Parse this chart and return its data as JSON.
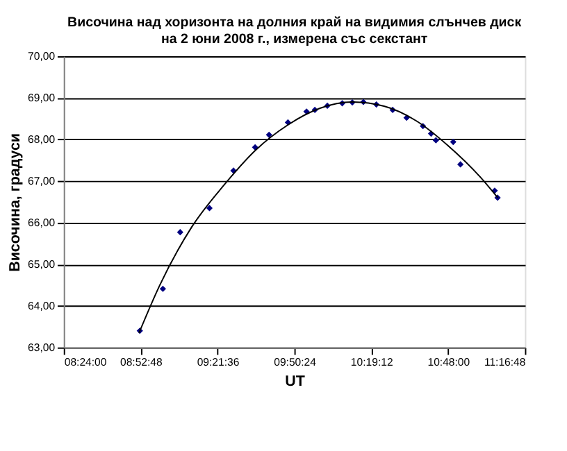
{
  "chart_data": {
    "type": "scatter",
    "title": "Височина над хоризонта на долния край на видимия слънчев диск на 2 юни 2008 г., измерена със секстант",
    "xlabel": "UT",
    "ylabel": "Височина, градуси",
    "xlim": [
      8.4,
      11.28
    ],
    "xticks": [
      {
        "value": 8.4,
        "label": "08:24:00"
      },
      {
        "value": 8.88,
        "label": "08:52:48"
      },
      {
        "value": 9.36,
        "label": "09:21:36"
      },
      {
        "value": 9.84,
        "label": "09:50:24"
      },
      {
        "value": 10.32,
        "label": "10:19:12"
      },
      {
        "value": 10.8,
        "label": "10:48:00"
      },
      {
        "value": 11.28,
        "label": "11:16:48"
      }
    ],
    "ylim": [
      63,
      70
    ],
    "yticks": [
      {
        "value": 63,
        "label": "63,00"
      },
      {
        "value": 64,
        "label": "64,00"
      },
      {
        "value": 65,
        "label": "65,00"
      },
      {
        "value": 66,
        "label": "66,00"
      },
      {
        "value": 67,
        "label": "67,00"
      },
      {
        "value": 68,
        "label": "68,00"
      },
      {
        "value": 69,
        "label": "69,00"
      },
      {
        "value": 70,
        "label": "70,00"
      }
    ],
    "grid": "y",
    "marker": "diamond",
    "series": [
      {
        "color": "#000080",
        "x": [
          8.875,
          9.019,
          9.127,
          9.31,
          9.46,
          9.595,
          9.682,
          9.8,
          9.916,
          9.968,
          10.046,
          10.139,
          10.202,
          10.271,
          10.352,
          10.454,
          10.541,
          10.643,
          10.694,
          10.724,
          10.832,
          10.877,
          11.091,
          11.109
        ],
        "values": [
          63.4,
          64.41,
          65.77,
          66.35,
          67.25,
          67.81,
          68.11,
          68.41,
          68.67,
          68.71,
          68.81,
          68.87,
          68.89,
          68.9,
          68.84,
          68.71,
          68.52,
          68.32,
          68.14,
          67.98,
          67.94,
          67.4,
          66.77,
          66.6
        ]
      },
      {
        "type": "line",
        "color": "#000000",
        "marker": "none",
        "line_style": "solid",
        "x": [
          8.87,
          9.0,
          9.2,
          9.4,
          9.6,
          9.8,
          10.0,
          10.2,
          10.4,
          10.6,
          10.8,
          11.0,
          11.11
        ],
        "values": [
          63.35,
          64.5,
          65.9,
          66.9,
          67.75,
          68.35,
          68.75,
          68.9,
          68.8,
          68.45,
          67.85,
          67.1,
          66.6
        ]
      }
    ]
  }
}
